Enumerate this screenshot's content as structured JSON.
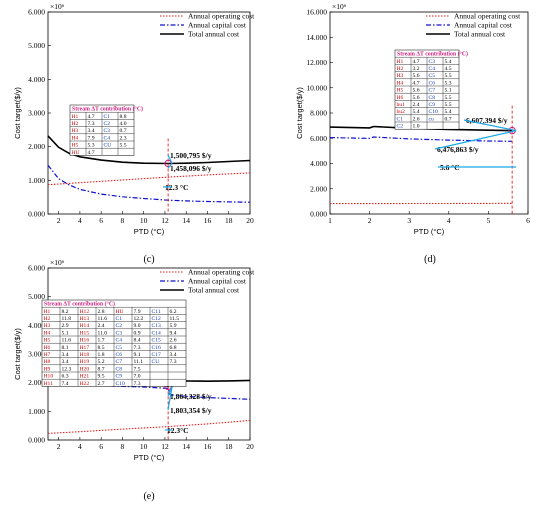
{
  "chart_data": [
    {
      "type": "line",
      "panel": "(c)",
      "ylabel": "Cost target($/y)",
      "xlabel": "PTD (°C)",
      "exponent": "×10⁶",
      "xlim": [
        1,
        20
      ],
      "ylim": [
        0,
        6000
      ],
      "xticks": [
        2,
        4,
        6,
        8,
        10,
        12,
        14,
        16,
        18,
        20
      ],
      "yticks": [
        0,
        1000,
        2000,
        3000,
        4000,
        5000,
        6000
      ],
      "ytick_labels": [
        "0.000",
        "1.000",
        "2.000",
        "3.000",
        "4.000",
        "5.000",
        "6.000"
      ],
      "legend": [
        "Annual operating cost",
        "Annual capital cost",
        "Total annual cost"
      ],
      "series": [
        {
          "name": "Annual operating cost",
          "x": [
            1,
            4,
            8,
            12,
            16,
            20
          ],
          "y": [
            870,
            930,
            1010,
            1090,
            1160,
            1220
          ]
        },
        {
          "name": "Annual capital cost",
          "x": [
            1,
            2,
            3,
            4,
            6,
            8,
            10,
            12.3,
            14,
            16,
            18,
            20
          ],
          "y": [
            1450,
            1050,
            860,
            730,
            590,
            510,
            460,
            410,
            390,
            370,
            360,
            350
          ]
        },
        {
          "name": "Total annual cost",
          "x": [
            1,
            2,
            3,
            4,
            6,
            8,
            10,
            12.3,
            14,
            16,
            18,
            20
          ],
          "y": [
            2320,
            1980,
            1800,
            1700,
            1600,
            1540,
            1510,
            1500,
            1510,
            1530,
            1560,
            1590
          ]
        }
      ],
      "annotations": [
        "1,500,795 $/y",
        "1,458,096 $/y",
        "12.3 °C"
      ],
      "optimum_x": 12.3,
      "table": {
        "title": "Stream ΔT contribution (°C)",
        "rows": [
          [
            "H1",
            "4.7",
            "C1",
            "8.8"
          ],
          [
            "H2",
            "7.3",
            "C2",
            "4.0"
          ],
          [
            "H3",
            "3.4",
            "C3",
            "0.7"
          ],
          [
            "H4",
            "7.9",
            "C4",
            "2.3"
          ],
          [
            "H5",
            "5.3",
            "CU",
            "5.5"
          ],
          [
            "HU",
            "4.7",
            "",
            ""
          ]
        ]
      }
    },
    {
      "type": "line",
      "panel": "(d)",
      "ylabel": "Cost target($/y)",
      "xlabel": "PTD (°C)",
      "exponent": "×10⁶",
      "xlim": [
        1,
        6
      ],
      "ylim": [
        0,
        16000
      ],
      "xticks": [
        1,
        2,
        3,
        4,
        5,
        6
      ],
      "yticks": [
        0,
        2000,
        4000,
        6000,
        8000,
        10000,
        12000,
        14000,
        16000
      ],
      "ytick_labels": [
        "0.000",
        "2.000",
        "4.000",
        "6.000",
        "8.000",
        "10.000",
        "12.000",
        "14.000",
        "16.000"
      ],
      "legend": [
        "Annual operating cost",
        "Annual capital cost",
        "Total annual cost"
      ],
      "series": [
        {
          "name": "Annual operating cost",
          "x": [
            1,
            2,
            3,
            4,
            5,
            5.6
          ],
          "y": [
            820,
            825,
            830,
            835,
            840,
            845
          ]
        },
        {
          "name": "Annual capital cost",
          "x": [
            1,
            2,
            2.1,
            3,
            4,
            5,
            5.6
          ],
          "y": [
            6050,
            5990,
            6100,
            5950,
            5850,
            5780,
            5760
          ]
        },
        {
          "name": "Total annual cost",
          "x": [
            1,
            2,
            2.1,
            3,
            4,
            5,
            5.6
          ],
          "y": [
            6880,
            6820,
            6930,
            6790,
            6700,
            6640,
            6607
          ]
        }
      ],
      "annotations": [
        "6,607,394 $/y",
        "6,476,863 $/y",
        "5.6 °C"
      ],
      "optimum_x": 5.6,
      "table": {
        "title": "Stream ΔT contribution (°C)",
        "rows": [
          [
            "H1",
            "4.7",
            "C3",
            "5.4"
          ],
          [
            "H2",
            "3.2",
            "C4",
            "4.5"
          ],
          [
            "H3",
            "5.6",
            "C5",
            "5.5"
          ],
          [
            "H4",
            "4.7",
            "C6",
            "5.3"
          ],
          [
            "H5",
            "5.6",
            "C7",
            "5.1"
          ],
          [
            "H6",
            "5.6",
            "C8",
            "5.5"
          ],
          [
            "hu1",
            "2.4",
            "C9",
            "5.5"
          ],
          [
            "hu2",
            "5.4",
            "C10",
            "5.4"
          ],
          [
            "C1",
            "2.6",
            "cu",
            "0.7"
          ],
          [
            "C2",
            "1.0",
            "",
            ""
          ]
        ]
      }
    },
    {
      "type": "line",
      "panel": "(e)",
      "ylabel": "Cost target($/y)",
      "xlabel": "PTD (°C)",
      "exponent": "×10⁶",
      "xlim": [
        1,
        20
      ],
      "ylim": [
        0,
        6000
      ],
      "xticks": [
        2,
        4,
        6,
        8,
        10,
        12,
        14,
        16,
        18,
        20
      ],
      "yticks": [
        0,
        1000,
        2000,
        3000,
        4000,
        5000,
        6000
      ],
      "ytick_labels": [
        "0.000",
        "1.000",
        "2.000",
        "3.000",
        "4.000",
        "5.000",
        "6.000"
      ],
      "legend": [
        "Annual operating cost",
        "Annual capital cost",
        "Total annual cost"
      ],
      "series": [
        {
          "name": "Annual operating cost",
          "x": [
            1,
            4,
            8,
            12,
            16,
            20
          ],
          "y": [
            230,
            290,
            380,
            460,
            560,
            680
          ]
        },
        {
          "name": "Annual capital cost",
          "x": [
            1,
            2,
            4,
            6,
            8,
            10,
            12.3,
            12.5,
            14,
            16,
            18,
            20
          ],
          "y": [
            2150,
            2050,
            1950,
            1900,
            1870,
            1850,
            1800,
            1580,
            1520,
            1480,
            1450,
            1420
          ]
        },
        {
          "name": "Total annual cost",
          "x": [
            1,
            2,
            4,
            6,
            8,
            10,
            12.3,
            12.5,
            14,
            16,
            18,
            20
          ],
          "y": [
            2380,
            2320,
            2240,
            2210,
            2200,
            2190,
            1870,
            2100,
            2060,
            2050,
            2060,
            2080
          ]
        }
      ],
      "annotations": [
        "1,864,328 $/y",
        "1,803,354 $/y",
        "12.3°C"
      ],
      "optimum_x": 12.3,
      "table": {
        "title": "Stream ΔT contribution (°C)",
        "rows": [
          [
            "H1",
            "8.2",
            "H12",
            "2.8",
            "HU",
            "7.9",
            "C11",
            "6.2"
          ],
          [
            "H2",
            "11.8",
            "H13",
            "11.6",
            "C1",
            "12.2",
            "C12",
            "11.5"
          ],
          [
            "H3",
            "2.9",
            "H14",
            "2.4",
            "C2",
            "9.0",
            "C13",
            "5.9"
          ],
          [
            "H4",
            "5.1",
            "H15",
            "11.0",
            "C3",
            "0.9",
            "C14",
            "9.4"
          ],
          [
            "H5",
            "11.6",
            "H16",
            "1.7",
            "C4",
            "8.4",
            "C15",
            "2.6"
          ],
          [
            "H6",
            "8.1",
            "H17",
            "8.5",
            "C5",
            "7.3",
            "C16",
            "6.8"
          ],
          [
            "H7",
            "3.4",
            "H18",
            "1.8",
            "C6",
            "9.1",
            "C17",
            "3.4"
          ],
          [
            "H8",
            "3.4",
            "H19",
            "5.2",
            "C7",
            "11.1",
            "CU",
            "7.3"
          ],
          [
            "H9",
            "12.3",
            "H20",
            "8.7",
            "C8",
            "7.5",
            "",
            ""
          ],
          [
            "H10",
            "6.3",
            "H21",
            "9.5",
            "C9",
            "7.0",
            "",
            ""
          ],
          [
            "H11",
            "7.4",
            "H22",
            "2.7",
            "C10",
            "7.3",
            "",
            ""
          ]
        ]
      }
    }
  ],
  "colors": {
    "operating": "#e02020",
    "capital": "#1010d0",
    "total": "#000000",
    "arrow": "#18a8e8",
    "marker": "#d02080",
    "hot_stream": "#cc0000",
    "cold_stream": "#1040c0",
    "tick": "#000000"
  }
}
